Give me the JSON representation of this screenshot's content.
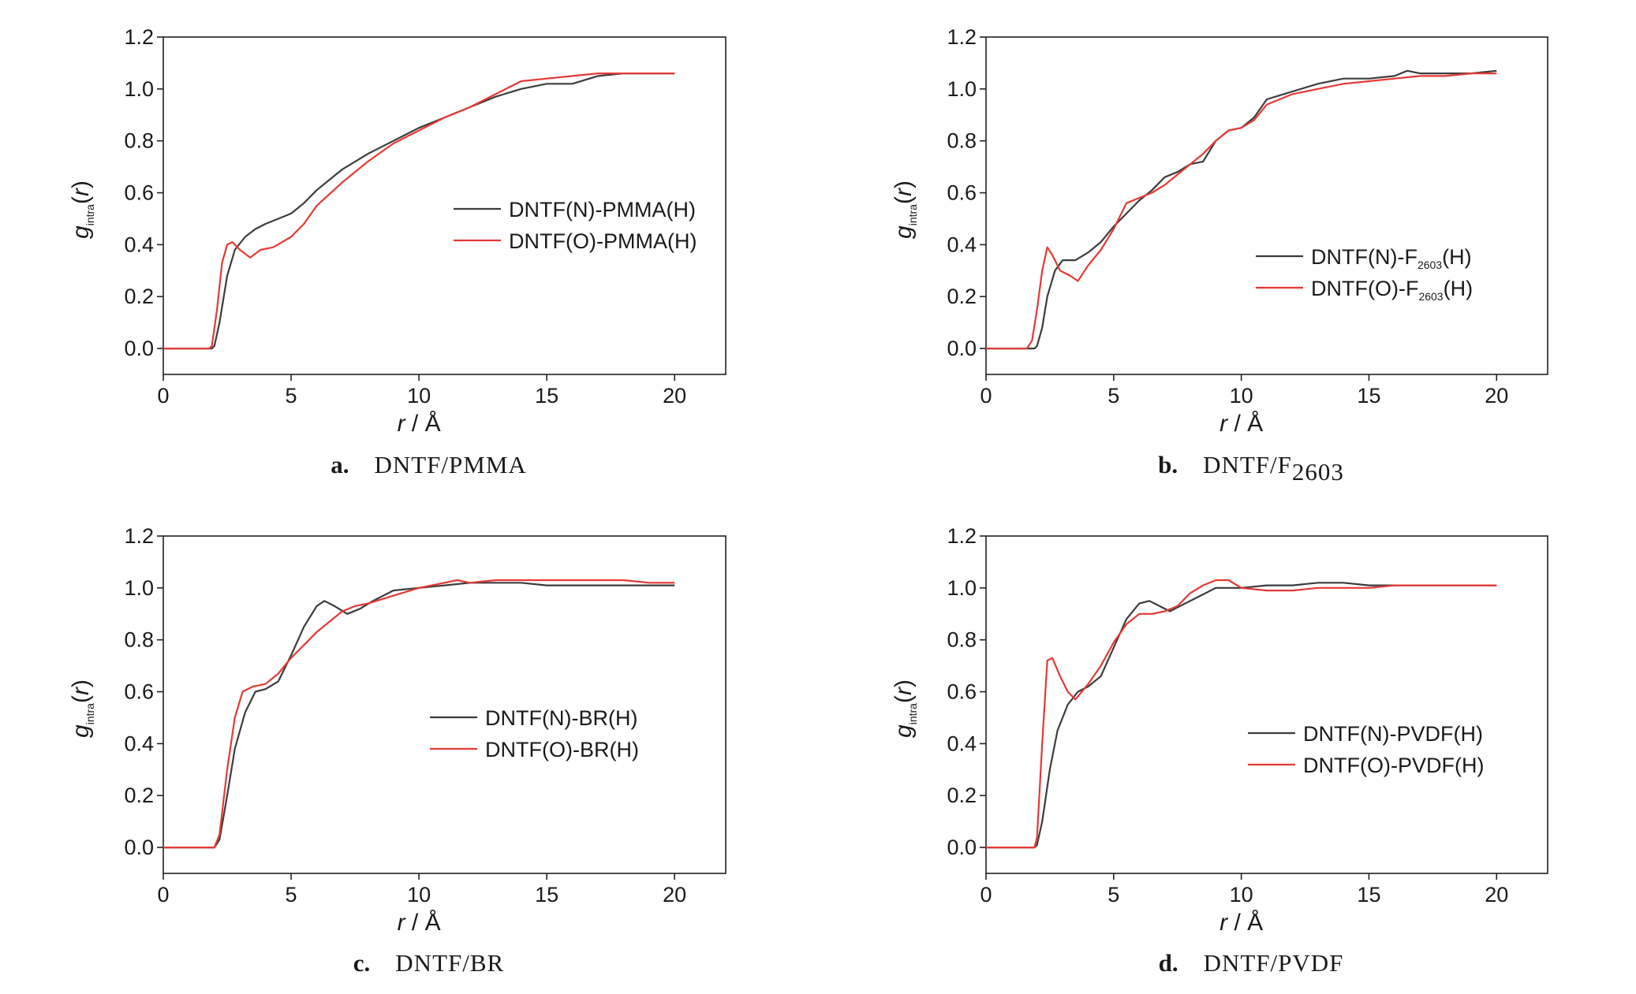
{
  "colors": {
    "series_n": "#3c3c3c",
    "series_o": "#e53935",
    "axis": "#222222"
  },
  "chart_data": [
    {
      "type": "line",
      "panel": "a",
      "caption_letter": "a.",
      "caption_text": "DNTF/PMMA",
      "caption_sub": "",
      "xlabel_var": "r",
      "xlabel_unit": " / Å",
      "ylabel_var": "g",
      "ylabel_sub": "intra",
      "ylabel_arg": "(r)",
      "xlim": [
        0,
        22
      ],
      "ylim": [
        -0.1,
        1.2
      ],
      "xticks": [
        0,
        5,
        10,
        15,
        20
      ],
      "xtick_labels": [
        "0",
        "5",
        "10",
        "15",
        "20"
      ],
      "yticks": [
        0,
        0.2,
        0.4,
        0.6,
        0.8,
        1.0,
        1.2
      ],
      "ytick_labels": [
        "0.0",
        "0.2",
        "0.4",
        "0.6",
        "0.8",
        "1.0",
        "1.2"
      ],
      "legend_position": "center-right",
      "series": [
        {
          "name_main": "DNTF(N)-PMMA(H)",
          "name_sub": "",
          "name_tail": "",
          "color": "#3c3c3c",
          "x": [
            0,
            1.9,
            2.0,
            2.2,
            2.5,
            2.8,
            3.2,
            3.6,
            4.0,
            4.5,
            5.0,
            5.5,
            6.0,
            7.0,
            8.0,
            9.0,
            10.0,
            11.0,
            12.0,
            13.0,
            14.0,
            15.0,
            16.0,
            17.0,
            18.0,
            19.0,
            20.0
          ],
          "y": [
            0,
            0,
            0.01,
            0.1,
            0.28,
            0.38,
            0.43,
            0.46,
            0.48,
            0.5,
            0.52,
            0.56,
            0.61,
            0.69,
            0.75,
            0.8,
            0.85,
            0.89,
            0.93,
            0.97,
            1.0,
            1.02,
            1.02,
            1.05,
            1.06,
            1.06,
            1.06
          ]
        },
        {
          "name_main": "DNTF(O)-PMMA(H)",
          "name_sub": "",
          "name_tail": "",
          "color": "#e53935",
          "x": [
            0,
            1.8,
            1.9,
            2.1,
            2.3,
            2.5,
            2.7,
            3.0,
            3.4,
            3.8,
            4.3,
            5.0,
            5.5,
            6.0,
            7.0,
            8.0,
            9.0,
            10.0,
            11.0,
            12.0,
            13.0,
            14.0,
            15.0,
            16.0,
            17.0,
            18.0,
            19.0,
            20.0
          ],
          "y": [
            0,
            0,
            0.01,
            0.15,
            0.33,
            0.4,
            0.41,
            0.38,
            0.35,
            0.38,
            0.39,
            0.43,
            0.48,
            0.55,
            0.64,
            0.72,
            0.79,
            0.84,
            0.89,
            0.93,
            0.98,
            1.03,
            1.04,
            1.05,
            1.06,
            1.06,
            1.06,
            1.06
          ]
        }
      ]
    },
    {
      "type": "line",
      "panel": "b",
      "caption_letter": "b.",
      "caption_text": "DNTF/F",
      "caption_sub": "2603",
      "xlabel_var": "r",
      "xlabel_unit": " / Å",
      "ylabel_var": "g",
      "ylabel_sub": "intra",
      "ylabel_arg": "(r)",
      "xlim": [
        0,
        22
      ],
      "ylim": [
        -0.1,
        1.2
      ],
      "xticks": [
        0,
        5,
        10,
        15,
        20
      ],
      "xtick_labels": [
        "0",
        "5",
        "10",
        "15",
        "20"
      ],
      "yticks": [
        0,
        0.2,
        0.4,
        0.6,
        0.8,
        1.0,
        1.2
      ],
      "ytick_labels": [
        "0.0",
        "0.2",
        "0.4",
        "0.6",
        "0.8",
        "1.0",
        "1.2"
      ],
      "legend_position": "lower-right",
      "series": [
        {
          "name_main": "DNTF(N)-F",
          "name_sub": "2603",
          "name_tail": "(H)",
          "color": "#3c3c3c",
          "x": [
            0,
            1.9,
            2.0,
            2.2,
            2.4,
            2.7,
            3.0,
            3.5,
            4.0,
            4.5,
            5.0,
            5.5,
            6.0,
            6.5,
            7.0,
            7.5,
            8.0,
            8.5,
            9.0,
            9.5,
            10.0,
            10.5,
            11.0,
            12.0,
            13.0,
            14.0,
            15.0,
            16.0,
            16.5,
            17.0,
            18.0,
            19.0,
            20.0
          ],
          "y": [
            0,
            0,
            0.01,
            0.08,
            0.2,
            0.3,
            0.34,
            0.34,
            0.37,
            0.41,
            0.47,
            0.52,
            0.57,
            0.61,
            0.66,
            0.68,
            0.71,
            0.72,
            0.8,
            0.84,
            0.85,
            0.89,
            0.96,
            0.99,
            1.02,
            1.04,
            1.04,
            1.05,
            1.07,
            1.06,
            1.06,
            1.06,
            1.07
          ]
        },
        {
          "name_main": "DNTF(O)-F",
          "name_sub": "2603",
          "name_tail": "(H)",
          "color": "#e53935",
          "x": [
            0,
            1.6,
            1.8,
            2.0,
            2.2,
            2.4,
            2.6,
            2.9,
            3.3,
            3.6,
            4.0,
            4.5,
            5.0,
            5.5,
            6.0,
            6.5,
            7.0,
            7.5,
            8.0,
            8.5,
            9.0,
            9.5,
            10.0,
            10.5,
            11.0,
            12.0,
            13.0,
            14.0,
            15.0,
            16.0,
            17.0,
            18.0,
            19.0,
            20.0
          ],
          "y": [
            0,
            0,
            0.03,
            0.15,
            0.3,
            0.39,
            0.36,
            0.3,
            0.28,
            0.26,
            0.32,
            0.38,
            0.46,
            0.56,
            0.58,
            0.6,
            0.63,
            0.67,
            0.71,
            0.75,
            0.8,
            0.84,
            0.85,
            0.88,
            0.94,
            0.98,
            1.0,
            1.02,
            1.03,
            1.04,
            1.05,
            1.05,
            1.06,
            1.06
          ]
        }
      ]
    },
    {
      "type": "line",
      "panel": "c",
      "caption_letter": "c.",
      "caption_text": "DNTF/BR",
      "caption_sub": "",
      "xlabel_var": "r",
      "xlabel_unit": " / Å",
      "ylabel_var": "g",
      "ylabel_sub": "intra",
      "ylabel_arg": "(r)",
      "xlim": [
        0,
        22
      ],
      "ylim": [
        -0.1,
        1.2
      ],
      "xticks": [
        0,
        5,
        10,
        15,
        20
      ],
      "xtick_labels": [
        "0",
        "5",
        "10",
        "15",
        "20"
      ],
      "yticks": [
        0,
        0.2,
        0.4,
        0.6,
        0.8,
        1.0,
        1.2
      ],
      "ytick_labels": [
        "0.0",
        "0.2",
        "0.4",
        "0.6",
        "0.8",
        "1.0",
        "1.2"
      ],
      "legend_position": "center-right",
      "series": [
        {
          "name_main": "DNTF(N)-BR(H)",
          "name_sub": "",
          "name_tail": "",
          "color": "#3c3c3c",
          "x": [
            0,
            2.0,
            2.2,
            2.5,
            2.8,
            3.2,
            3.6,
            4.0,
            4.5,
            5.0,
            5.5,
            6.0,
            6.3,
            6.7,
            7.2,
            7.7,
            8.2,
            9.0,
            10.0,
            11.0,
            12.0,
            13.0,
            14.0,
            15.0,
            16.0,
            17.0,
            18.0,
            19.0,
            20.0
          ],
          "y": [
            0,
            0,
            0.03,
            0.2,
            0.38,
            0.52,
            0.6,
            0.61,
            0.64,
            0.74,
            0.85,
            0.93,
            0.95,
            0.93,
            0.9,
            0.92,
            0.95,
            0.99,
            1.0,
            1.01,
            1.02,
            1.02,
            1.02,
            1.01,
            1.01,
            1.01,
            1.01,
            1.01,
            1.01
          ]
        },
        {
          "name_main": "DNTF(O)-BR(H)",
          "name_sub": "",
          "name_tail": "",
          "color": "#e53935",
          "x": [
            0,
            2.0,
            2.2,
            2.5,
            2.8,
            3.1,
            3.5,
            4.0,
            4.5,
            5.0,
            5.5,
            6.0,
            6.5,
            7.0,
            7.5,
            8.0,
            9.0,
            10.0,
            11.0,
            11.5,
            12.0,
            13.0,
            14.0,
            15.0,
            16.0,
            17.0,
            18.0,
            19.0,
            20.0
          ],
          "y": [
            0,
            0,
            0.05,
            0.3,
            0.5,
            0.6,
            0.62,
            0.63,
            0.67,
            0.73,
            0.78,
            0.83,
            0.87,
            0.91,
            0.93,
            0.94,
            0.97,
            1.0,
            1.02,
            1.03,
            1.02,
            1.03,
            1.03,
            1.03,
            1.03,
            1.03,
            1.03,
            1.02,
            1.02
          ]
        }
      ]
    },
    {
      "type": "line",
      "panel": "d",
      "caption_letter": "d.",
      "caption_text": "DNTF/PVDF",
      "caption_sub": "",
      "xlabel_var": "r",
      "xlabel_unit": " / Å",
      "ylabel_var": "g",
      "ylabel_sub": "intra",
      "ylabel_arg": "(r)",
      "xlim": [
        0,
        22
      ],
      "ylim": [
        -0.1,
        1.2
      ],
      "xticks": [
        0,
        5,
        10,
        15,
        20
      ],
      "xtick_labels": [
        "0",
        "5",
        "10",
        "15",
        "20"
      ],
      "yticks": [
        0,
        0.2,
        0.4,
        0.6,
        0.8,
        1.0,
        1.2
      ],
      "ytick_labels": [
        "0.0",
        "0.2",
        "0.4",
        "0.6",
        "0.8",
        "1.0",
        "1.2"
      ],
      "legend_position": "lower-right",
      "series": [
        {
          "name_main": "DNTF(N)-PVDF(H)",
          "name_sub": "",
          "name_tail": "",
          "color": "#3c3c3c",
          "x": [
            0,
            1.9,
            2.0,
            2.2,
            2.5,
            2.8,
            3.2,
            3.6,
            4.0,
            4.5,
            5.0,
            5.5,
            6.0,
            6.4,
            6.8,
            7.2,
            8.0,
            9.0,
            10.0,
            11.0,
            12.0,
            13.0,
            14.0,
            15.0,
            16.0,
            17.0,
            18.0,
            19.0,
            20.0
          ],
          "y": [
            0,
            0,
            0.01,
            0.1,
            0.3,
            0.45,
            0.55,
            0.6,
            0.62,
            0.66,
            0.77,
            0.88,
            0.94,
            0.95,
            0.93,
            0.91,
            0.95,
            1.0,
            1.0,
            1.01,
            1.01,
            1.02,
            1.02,
            1.01,
            1.01,
            1.01,
            1.01,
            1.01,
            1.01
          ]
        },
        {
          "name_main": "DNTF(O)-PVDF(H)",
          "name_sub": "",
          "name_tail": "",
          "color": "#e53935",
          "x": [
            0,
            1.9,
            2.0,
            2.2,
            2.4,
            2.6,
            2.9,
            3.2,
            3.5,
            4.0,
            4.5,
            5.0,
            5.5,
            6.0,
            6.5,
            7.0,
            7.5,
            8.0,
            8.5,
            9.0,
            9.5,
            10.0,
            11.0,
            12.0,
            13.0,
            14.0,
            15.0,
            16.0,
            17.0,
            18.0,
            19.0,
            20.0
          ],
          "y": [
            0,
            0,
            0.04,
            0.4,
            0.72,
            0.73,
            0.66,
            0.6,
            0.57,
            0.63,
            0.7,
            0.79,
            0.86,
            0.9,
            0.9,
            0.91,
            0.93,
            0.98,
            1.01,
            1.03,
            1.03,
            1.0,
            0.99,
            0.99,
            1.0,
            1.0,
            1.0,
            1.01,
            1.01,
            1.01,
            1.01,
            1.01
          ]
        }
      ]
    }
  ]
}
